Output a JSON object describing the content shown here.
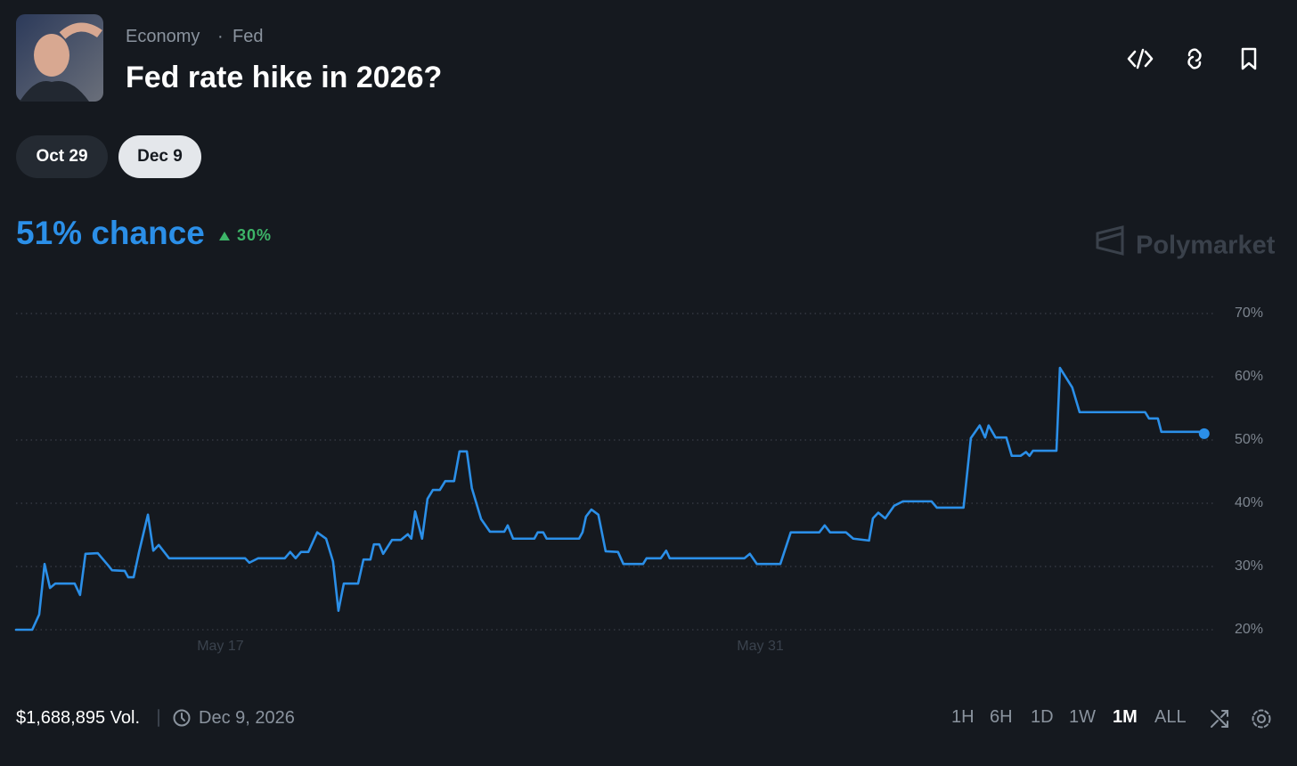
{
  "header": {
    "category": "Economy",
    "subcategory": "Fed",
    "title": "Fed rate hike in 2026?"
  },
  "date_tabs": [
    "Oct 29",
    "Dec 9"
  ],
  "odds": {
    "chance": "51% chance",
    "change": "30%"
  },
  "brand": "Polymarket",
  "chart_data": {
    "type": "line",
    "color": "#2b8fe8",
    "grid": true,
    "x": [
      11.7,
      12.12,
      12.3,
      12.44,
      12.58,
      12.72,
      13.22,
      13.36,
      13.5,
      13.82,
      14.1,
      14.19,
      14.52,
      14.61,
      14.75,
      14.89,
      15.12,
      15.26,
      15.4,
      15.67,
      17.64,
      17.75,
      17.98,
      18.67,
      18.81,
      18.95,
      19.09,
      19.28,
      19.51,
      19.74,
      19.92,
      20.06,
      20.2,
      20.57,
      20.71,
      20.89,
      20.98,
      21.12,
      21.22,
      21.45,
      21.68,
      21.86,
      21.95,
      22.05,
      22.23,
      22.37,
      22.51,
      22.69,
      22.83,
      23.06,
      23.2,
      23.39,
      23.52,
      23.76,
      23.99,
      24.36,
      24.45,
      24.59,
      25.14,
      25.23,
      25.37,
      25.46,
      26.3,
      26.39,
      26.48,
      26.62,
      26.8,
      26.99,
      27.31,
      27.45,
      27.96,
      28.05,
      28.42,
      28.56,
      28.65,
      30.59,
      30.73,
      30.91,
      31.52,
      31.79,
      32.53,
      32.67,
      32.81,
      33.22,
      33.41,
      33.82,
      33.92,
      34.06,
      34.24,
      34.47,
      34.7,
      35.44,
      35.58,
      36.27,
      36.46,
      36.69,
      36.83,
      36.92,
      37.1,
      37.38,
      37.52,
      37.75,
      37.89,
      37.98,
      38.07,
      38.68,
      38.77,
      39.09,
      39.28,
      40.98,
      41.08,
      41.31,
      41.4,
      42.37,
      42.51
    ],
    "values": [
      20,
      20,
      22.4,
      30.4,
      26.6,
      27.3,
      27.3,
      25.5,
      32,
      32.1,
      30.1,
      29.4,
      29.3,
      28.3,
      28.3,
      32.3,
      38.2,
      32.5,
      33.4,
      31.3,
      31.3,
      30.6,
      31.3,
      31.3,
      32.3,
      31.3,
      32.3,
      32.3,
      35.4,
      34.4,
      30.8,
      23,
      27.3,
      27.3,
      31.1,
      31.1,
      33.5,
      33.5,
      32,
      34.2,
      34.2,
      35.1,
      34.4,
      38.7,
      34.4,
      40.7,
      42.1,
      42.1,
      43.5,
      43.5,
      48.2,
      48.2,
      42.4,
      37.5,
      35.5,
      35.5,
      36.5,
      34.4,
      34.4,
      35.4,
      35.4,
      34.4,
      34.4,
      35.4,
      37.9,
      39,
      38.2,
      32.4,
      32.3,
      30.4,
      30.4,
      31.3,
      31.3,
      32.5,
      31.3,
      31.3,
      32,
      30.4,
      30.4,
      35.4,
      35.4,
      36.5,
      35.4,
      35.4,
      34.4,
      34.1,
      37.6,
      38.5,
      37.6,
      39.6,
      40.3,
      40.3,
      39.3,
      39.3,
      50.3,
      52.3,
      50.4,
      52.3,
      50.4,
      50.4,
      47.5,
      47.5,
      48.1,
      47.5,
      48.3,
      48.3,
      61.4,
      58.3,
      54.4,
      54.4,
      53.4,
      53.4,
      51.3,
      51.3,
      51
    ],
    "xlim": [
      11.7,
      42.7
    ],
    "xticks": [
      {
        "value": 17,
        "label": "May 17"
      },
      {
        "value": 31,
        "label": "May 31"
      }
    ],
    "ylim": [
      20,
      70
    ],
    "yticks": [
      {
        "value": 20,
        "label": "20%"
      },
      {
        "value": 30,
        "label": "30%"
      },
      {
        "value": 40,
        "label": "40%"
      },
      {
        "value": 50,
        "label": "50%"
      },
      {
        "value": 60,
        "label": "60%"
      },
      {
        "value": 70,
        "label": "70%"
      }
    ]
  },
  "footer": {
    "volume": "$1,688,895 Vol.",
    "end_date": "Dec 9, 2026",
    "ranges": [
      "1H",
      "6H",
      "1D",
      "1W",
      "1M",
      "ALL"
    ]
  }
}
